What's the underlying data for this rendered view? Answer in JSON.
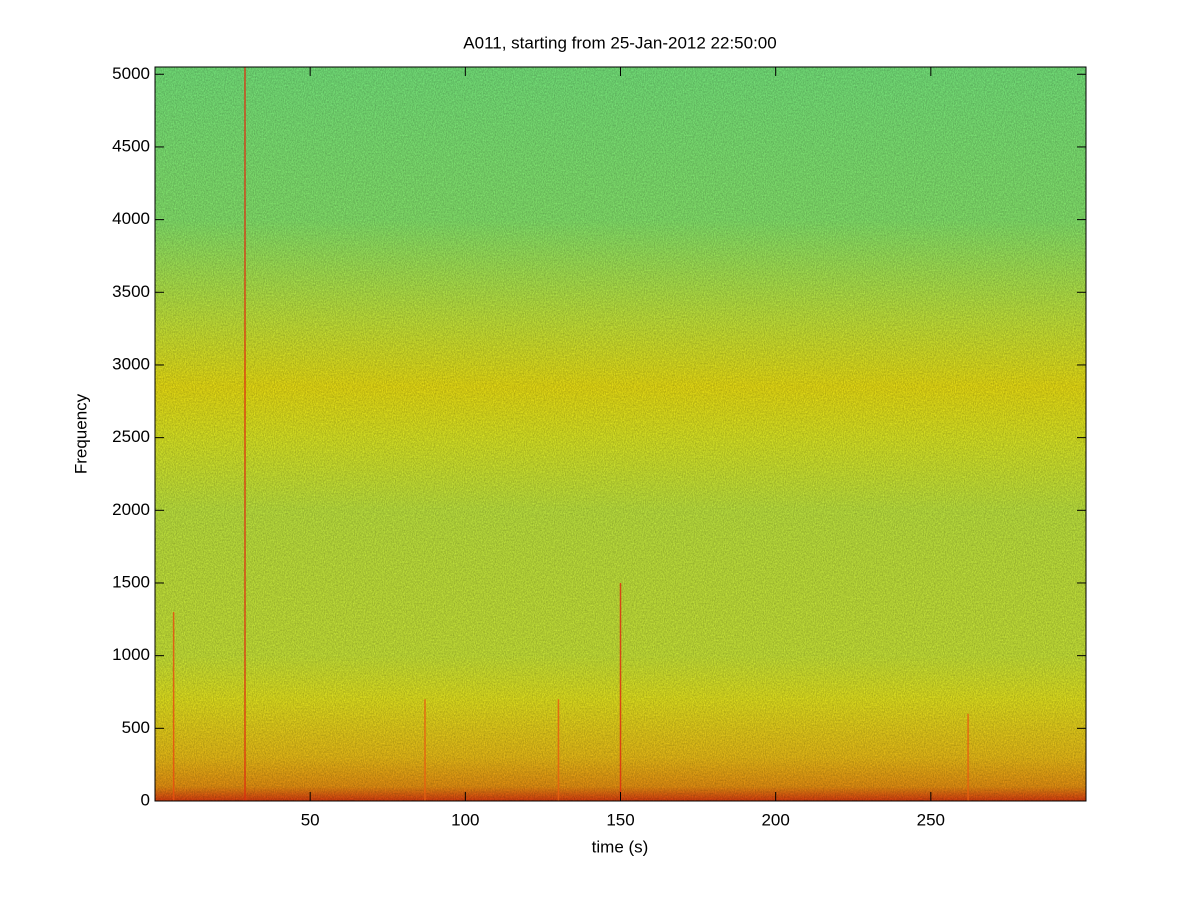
{
  "chart_data": {
    "type": "spectrogram",
    "title": "A011, starting from 25-Jan-2012 22:50:00",
    "xlabel": "time (s)",
    "ylabel": "Frequency",
    "xlim": [
      0,
      300
    ],
    "ylim": [
      0,
      5050
    ],
    "xticks": [
      50,
      100,
      150,
      200,
      250
    ],
    "yticks": [
      0,
      500,
      1000,
      1500,
      2000,
      2500,
      3000,
      3500,
      4000,
      4500,
      5000
    ],
    "color_scale": [
      {
        "frequency": 0,
        "color": "#e8400f"
      },
      {
        "frequency": 100,
        "color": "#f59a12"
      },
      {
        "frequency": 300,
        "color": "#f8c818"
      },
      {
        "frequency": 700,
        "color": "#f0f020"
      },
      {
        "frequency": 1000,
        "color": "#d4f23a"
      },
      {
        "frequency": 2000,
        "color": "#caf242"
      },
      {
        "frequency": 2500,
        "color": "#e8f426"
      },
      {
        "frequency": 2850,
        "color": "#f8ec14"
      },
      {
        "frequency": 3300,
        "color": "#d0f23c"
      },
      {
        "frequency": 4000,
        "color": "#8cf272"
      },
      {
        "frequency": 5050,
        "color": "#7cf282"
      }
    ],
    "streaks": [
      {
        "time": 6,
        "top": 1300,
        "color": "#e85010"
      },
      {
        "time": 29,
        "top": 5050,
        "color": "#e03010"
      },
      {
        "time": 150,
        "top": 1500,
        "color": "#e03010"
      },
      {
        "time": 87,
        "top": 700,
        "color": "#e86010"
      },
      {
        "time": 130,
        "top": 700,
        "color": "#e86010"
      },
      {
        "time": 262,
        "top": 600,
        "color": "#e86010"
      }
    ]
  }
}
